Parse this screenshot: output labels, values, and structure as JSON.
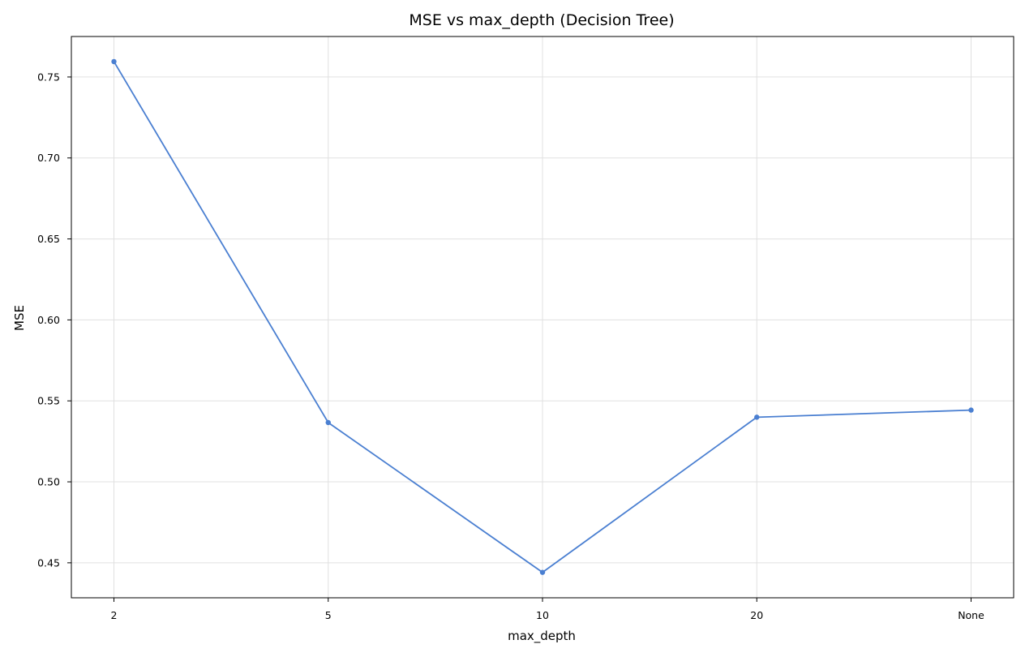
{
  "chart_data": {
    "type": "line",
    "title": "MSE vs max_depth (Decision Tree)",
    "xlabel": "max_depth",
    "ylabel": "MSE",
    "categories": [
      "2",
      "5",
      "10",
      "20",
      "None"
    ],
    "series": [
      {
        "values": [
          0.7595,
          0.5366,
          0.4441,
          0.5399,
          0.5443
        ],
        "color": "#4a7fd1",
        "marker": "circle"
      }
    ],
    "y_ticks": [
      0.45,
      0.5,
      0.55,
      0.6,
      0.65,
      0.7,
      0.75
    ],
    "y_tick_labels": [
      "0.45",
      "0.50",
      "0.55",
      "0.60",
      "0.65",
      "0.70",
      "0.75"
    ],
    "ylim": [
      0.4284,
      0.775
    ],
    "grid": true,
    "legend": "none"
  }
}
